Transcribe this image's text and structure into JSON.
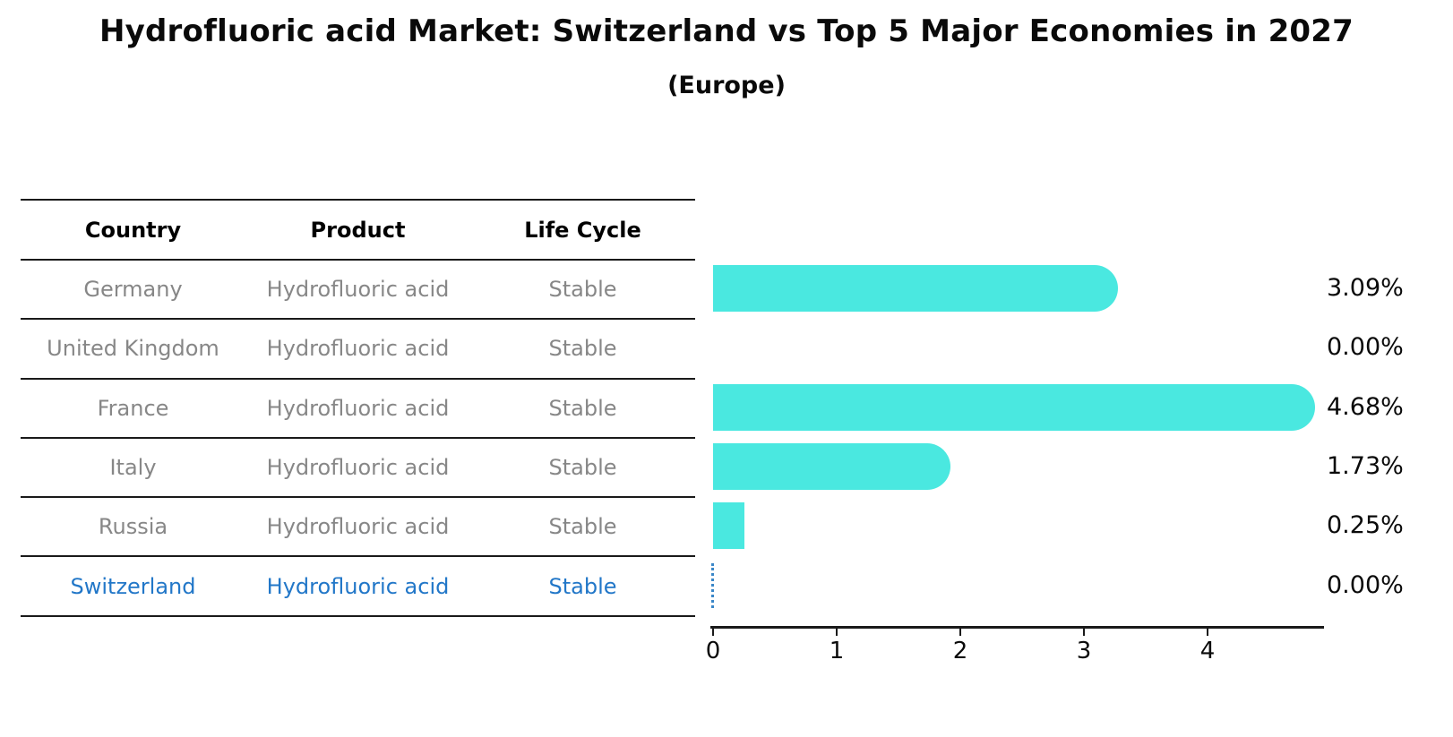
{
  "title": "Hydrofluoric acid Market: Switzerland vs Top 5 Major Economies in 2027",
  "subtitle": "(Europe)",
  "table": {
    "headers": [
      "Country",
      "Product",
      "Life Cycle"
    ],
    "rows": [
      {
        "country": "Germany",
        "product": "Hydrofluoric acid",
        "life_cycle": "Stable"
      },
      {
        "country": "United Kingdom",
        "product": "Hydrofluoric acid",
        "life_cycle": "Stable"
      },
      {
        "country": "France",
        "product": "Hydrofluoric acid",
        "life_cycle": "Stable"
      },
      {
        "country": "Italy",
        "product": "Hydrofluoric acid",
        "life_cycle": "Stable"
      },
      {
        "country": "Russia",
        "product": "Hydrofluoric acid",
        "life_cycle": "Stable"
      },
      {
        "country": "Switzerland",
        "product": "Hydrofluoric acid",
        "life_cycle": "Stable"
      }
    ]
  },
  "chart_data": {
    "type": "bar",
    "orientation": "horizontal",
    "categories": [
      "Germany",
      "United Kingdom",
      "France",
      "Italy",
      "Russia",
      "Switzerland"
    ],
    "values": [
      3.09,
      0.0,
      4.68,
      1.73,
      0.25,
      0.0
    ],
    "value_labels": [
      "3.09%",
      "0.00%",
      "4.68%",
      "1.73%",
      "0.25%",
      "0.00%"
    ],
    "xticks": [
      "0",
      "1",
      "2",
      "3",
      "4"
    ],
    "xlim": [
      0,
      4.94
    ],
    "grid": false,
    "legend": "none",
    "bar_color": "#4AE8E0",
    "highlight_row": "Switzerland",
    "highlight_color": "#2277C8",
    "zero_marker_style": "dotted-blue-line"
  }
}
